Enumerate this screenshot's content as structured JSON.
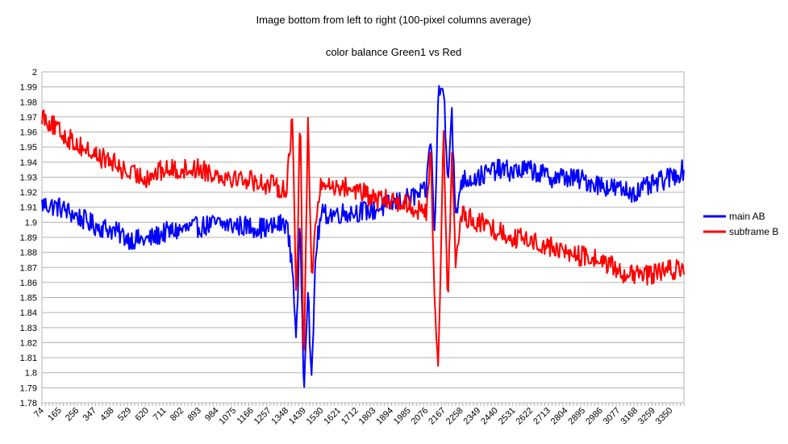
{
  "chart_data": {
    "type": "line",
    "title": "Image bottom from left to right (100-pixel columns average)",
    "subtitle": "color balance Green1 vs Red",
    "xlabel": "",
    "ylabel": "",
    "ylim": [
      1.78,
      2.0
    ],
    "y_ticks": [
      "1.78",
      "1.79",
      "1.8",
      "1.81",
      "1.82",
      "1.83",
      "1.84",
      "1.85",
      "1.86",
      "1.87",
      "1.88",
      "1.89",
      "1.9",
      "1.91",
      "1.92",
      "1.93",
      "1.94",
      "1.95",
      "1.96",
      "1.97",
      "1.98",
      "1.99",
      "2"
    ],
    "x_tick_labels": [
      "74",
      "165",
      "256",
      "347",
      "438",
      "529",
      "620",
      "711",
      "802",
      "893",
      "984",
      "1075",
      "1166",
      "1257",
      "1348",
      "1439",
      "1530",
      "1621",
      "1712",
      "1803",
      "1894",
      "1985",
      "2076",
      "2167",
      "2258",
      "2349",
      "2440",
      "2531",
      "2622",
      "2713",
      "2804",
      "2895",
      "2986",
      "3077",
      "3168",
      "3259",
      "3350"
    ],
    "xlim": [
      74,
      3420
    ],
    "grid": "horizontal",
    "legend_position": "right",
    "series": [
      {
        "name": "main AB",
        "color": "#0000ff",
        "x": [
          74,
          165,
          256,
          347,
          438,
          529,
          620,
          711,
          802,
          893,
          984,
          1075,
          1166,
          1257,
          1348,
          1380,
          1400,
          1420,
          1439,
          1460,
          1480,
          1500,
          1530,
          1621,
          1712,
          1803,
          1894,
          1985,
          2076,
          2100,
          2120,
          2140,
          2167,
          2190,
          2210,
          2230,
          2258,
          2349,
          2440,
          2531,
          2622,
          2713,
          2804,
          2895,
          2986,
          3077,
          3168,
          3259,
          3350,
          3420
        ],
        "y": [
          1.912,
          1.91,
          1.904,
          1.898,
          1.895,
          1.889,
          1.888,
          1.893,
          1.895,
          1.897,
          1.899,
          1.898,
          1.897,
          1.896,
          1.9,
          1.87,
          1.822,
          1.9,
          1.79,
          1.86,
          1.79,
          1.88,
          1.905,
          1.906,
          1.907,
          1.908,
          1.912,
          1.916,
          1.92,
          1.96,
          1.89,
          1.985,
          1.99,
          1.93,
          1.975,
          1.9,
          1.928,
          1.93,
          1.935,
          1.934,
          1.935,
          1.93,
          1.93,
          1.928,
          1.925,
          1.922,
          1.92,
          1.925,
          1.93,
          1.935
        ]
      },
      {
        "name": "subframe B",
        "color": "#ff0000",
        "x": [
          74,
          165,
          256,
          347,
          438,
          529,
          620,
          711,
          802,
          893,
          984,
          1075,
          1166,
          1257,
          1348,
          1380,
          1400,
          1420,
          1439,
          1460,
          1480,
          1500,
          1530,
          1621,
          1712,
          1803,
          1894,
          1985,
          2076,
          2100,
          2120,
          2140,
          2167,
          2190,
          2210,
          2230,
          2258,
          2349,
          2440,
          2531,
          2622,
          2713,
          2804,
          2895,
          2986,
          3077,
          3168,
          3259,
          3350,
          3420
        ],
        "y": [
          1.972,
          1.96,
          1.952,
          1.945,
          1.94,
          1.932,
          1.93,
          1.935,
          1.935,
          1.936,
          1.932,
          1.93,
          1.928,
          1.925,
          1.922,
          1.97,
          1.84,
          1.98,
          1.8,
          1.97,
          1.86,
          1.9,
          1.925,
          1.924,
          1.922,
          1.915,
          1.915,
          1.912,
          1.905,
          1.95,
          1.85,
          1.8,
          1.965,
          1.84,
          1.95,
          1.87,
          1.905,
          1.9,
          1.895,
          1.89,
          1.888,
          1.884,
          1.88,
          1.877,
          1.875,
          1.868,
          1.864,
          1.866,
          1.868,
          1.87
        ]
      }
    ]
  }
}
